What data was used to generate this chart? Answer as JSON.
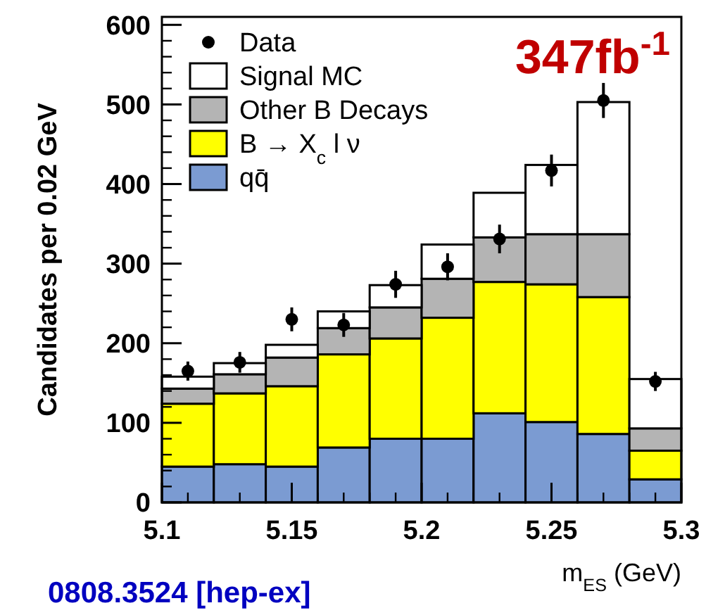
{
  "chart_data": {
    "type": "bar",
    "stacked": true,
    "ylabel": "Candidates per 0.02 GeV",
    "xlabel": "m$_{ES}$ (GeV)",
    "annotations": [
      "347fb$^{-1}$",
      "0808.3524 [hep-ex]"
    ],
    "x": [
      5.11,
      5.13,
      5.15,
      5.17,
      5.19,
      5.21,
      5.23,
      5.25,
      5.27,
      5.29
    ],
    "xlim": [
      5.1,
      5.3
    ],
    "xticks": [
      5.1,
      {
        "value": 5.11,
        "label": null
      },
      {
        "value": 5.12,
        "label": null
      },
      {
        "value": 5.13,
        "label": null
      },
      {
        "value": 5.14,
        "label": null
      },
      5.15,
      {
        "value": 5.16,
        "label": null
      },
      {
        "value": 5.17,
        "label": null
      },
      {
        "value": 5.18,
        "label": null
      },
      {
        "value": 5.19,
        "label": null
      },
      5.2,
      {
        "value": 5.21,
        "label": null
      },
      {
        "value": 5.22,
        "label": null
      },
      {
        "value": 5.23,
        "label": null
      },
      {
        "value": 5.24,
        "label": null
      },
      5.25,
      {
        "value": 5.26,
        "label": null
      },
      {
        "value": 5.27,
        "label": null
      },
      {
        "value": 5.28,
        "label": null
      },
      {
        "value": 5.29,
        "label": null
      },
      5.3
    ],
    "ylim": [
      0,
      610
    ],
    "yticks": [
      0,
      100,
      200,
      300,
      400,
      500,
      600
    ],
    "legend": "top left",
    "grid": false,
    "series": [
      {
        "name": "qq̄",
        "color": "#7b9bd2",
        "values": [
          45,
          48,
          45,
          69,
          80,
          80,
          112,
          101,
          86,
          29
        ]
      },
      {
        "name": "B → X$_{c}$ l ν",
        "color": "#ffff00",
        "values": [
          79,
          89,
          101,
          117,
          126,
          152,
          165,
          173,
          172,
          36
        ]
      },
      {
        "name": "Other B Decays",
        "color": "#b4b4b4",
        "values": [
          19,
          24,
          36,
          33,
          39,
          49,
          56,
          63,
          79,
          28
        ]
      },
      {
        "name": "Signal MC",
        "color": "#ffffff",
        "values": [
          15,
          14,
          16,
          21,
          28,
          43,
          56,
          87,
          166,
          62
        ]
      },
      {
        "name": "Data",
        "type": "scatter",
        "marker": "circle",
        "color": "#000000",
        "x": [
          5.11,
          5.13,
          5.15,
          5.17,
          5.19,
          5.21,
          5.23,
          5.25,
          5.27,
          5.29
        ],
        "values": [
          165,
          176,
          230,
          223,
          274,
          296,
          331,
          417,
          505,
          152
        ],
        "errors": [
          12,
          13,
          15,
          15,
          17,
          17,
          18,
          20,
          22,
          12
        ]
      }
    ]
  }
}
